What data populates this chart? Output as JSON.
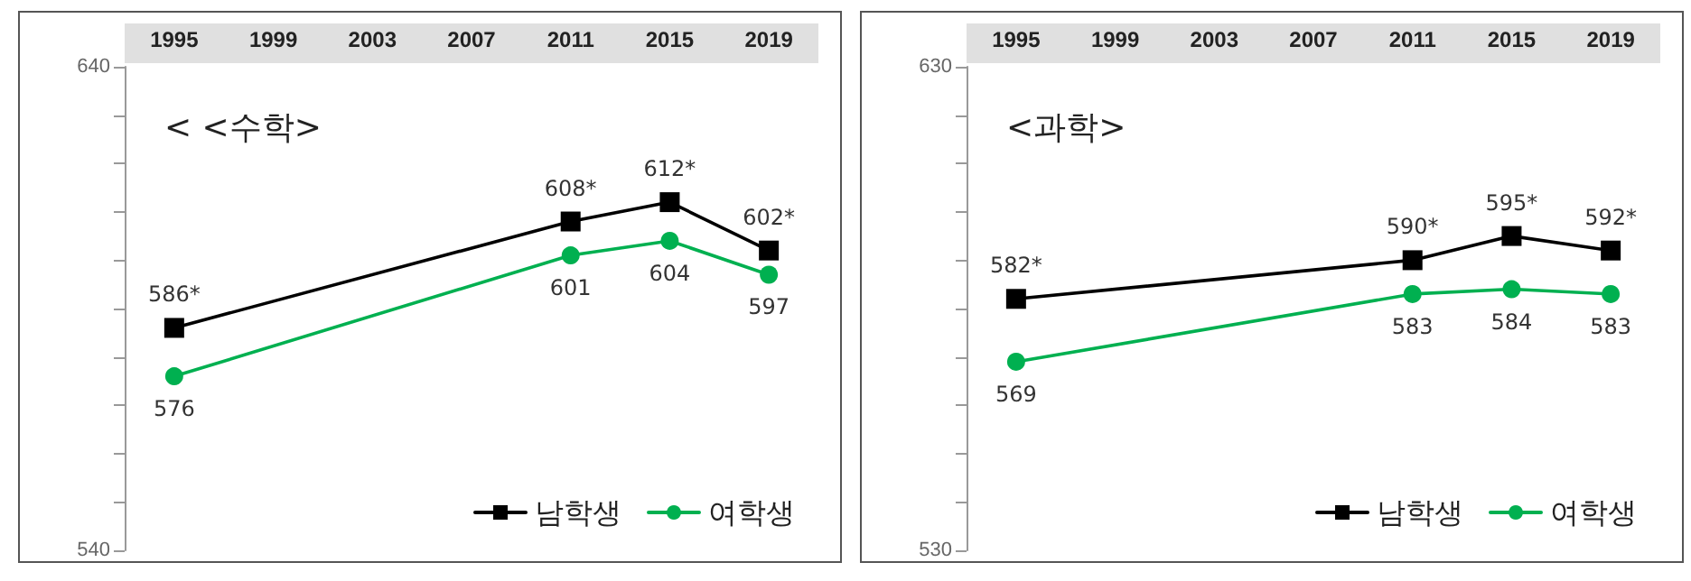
{
  "chart_data": [
    {
      "type": "line",
      "title": "< <수학>",
      "categories": [
        "1995",
        "1999",
        "2003",
        "2007",
        "2011",
        "2015",
        "2019"
      ],
      "ylim": [
        540,
        640
      ],
      "yticks": [
        540,
        {
          "value": 550,
          "label": null
        },
        {
          "value": 560,
          "label": null
        },
        {
          "value": 570,
          "label": null
        },
        {
          "value": 580,
          "label": null
        },
        {
          "value": 590,
          "label": null
        },
        {
          "value": 600,
          "label": null
        },
        {
          "value": 610,
          "label": null
        },
        {
          "value": 620,
          "label": null
        },
        {
          "value": 630,
          "label": null
        },
        640
      ],
      "grid": false,
      "legend": "bottom right",
      "line_style": "solid",
      "series": [
        {
          "name": "남학생",
          "color": "#000000",
          "marker": "square",
          "values": [
            586,
            null,
            null,
            null,
            608,
            612,
            602
          ],
          "value_labels": [
            "586*",
            null,
            null,
            null,
            "608*",
            "612*",
            "602*"
          ]
        },
        {
          "name": "여학생",
          "color": "#00b050",
          "marker": "circle",
          "values": [
            576,
            null,
            null,
            null,
            601,
            604,
            597
          ],
          "value_labels": [
            "576",
            null,
            null,
            null,
            "601",
            "604",
            "597"
          ]
        }
      ]
    },
    {
      "type": "line",
      "title": "<과학>",
      "categories": [
        "1995",
        "1999",
        "2003",
        "2007",
        "2011",
        "2015",
        "2019"
      ],
      "ylim": [
        530,
        630
      ],
      "yticks": [
        530,
        {
          "value": 540,
          "label": null
        },
        {
          "value": 550,
          "label": null
        },
        {
          "value": 560,
          "label": null
        },
        {
          "value": 570,
          "label": null
        },
        {
          "value": 580,
          "label": null
        },
        {
          "value": 590,
          "label": null
        },
        {
          "value": 600,
          "label": null
        },
        {
          "value": 610,
          "label": null
        },
        {
          "value": 620,
          "label": null
        },
        630
      ],
      "grid": false,
      "legend": "bottom right",
      "line_style": "solid",
      "series": [
        {
          "name": "남학생",
          "color": "#000000",
          "marker": "square",
          "values": [
            582,
            null,
            null,
            null,
            590,
            595,
            592
          ],
          "value_labels": [
            "582*",
            null,
            null,
            null,
            "590*",
            "595*",
            "592*"
          ]
        },
        {
          "name": "여학생",
          "color": "#00b050",
          "marker": "circle",
          "values": [
            569,
            null,
            null,
            null,
            583,
            584,
            583
          ],
          "value_labels": [
            "569",
            null,
            null,
            null,
            "583",
            "584",
            "583"
          ]
        }
      ]
    }
  ]
}
